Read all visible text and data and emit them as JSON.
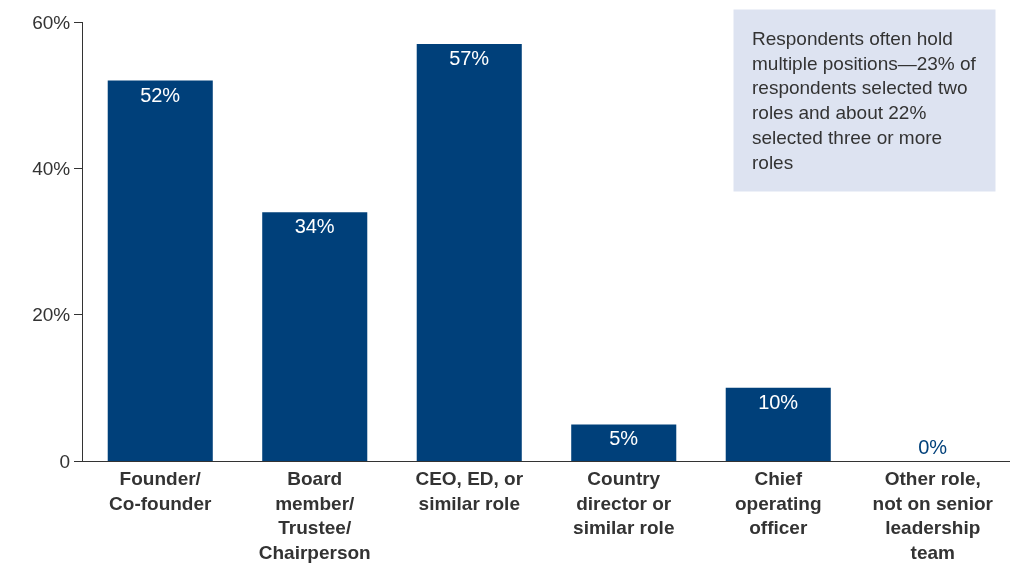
{
  "chart_data": {
    "type": "bar",
    "categories": [
      "Founder/\nCo-founder",
      "Board\nmember/\nTrustee/\nChairperson",
      "CEO, ED, or\nsimilar role",
      "Country\ndirector or\nsimilar role",
      "Chief\noperating\nofficer",
      "Other role,\nnot on senior\nleadership\nteam"
    ],
    "values": [
      52,
      34,
      57,
      5,
      10,
      0
    ],
    "value_labels": [
      "52%",
      "34%",
      "57%",
      "5%",
      "10%",
      "0%"
    ],
    "color": "#00407a",
    "ylim": [
      0,
      60
    ],
    "yticks": [
      0,
      {
        "value": 20,
        "label": "20%"
      },
      {
        "value": 40,
        "label": "40%"
      },
      {
        "value": 60,
        "label": "60%"
      }
    ],
    "grid": false,
    "annotations": [
      "Respondents often hold multiple positions—23% of respondents selected two roles and about 22% selected three or more roles"
    ]
  }
}
